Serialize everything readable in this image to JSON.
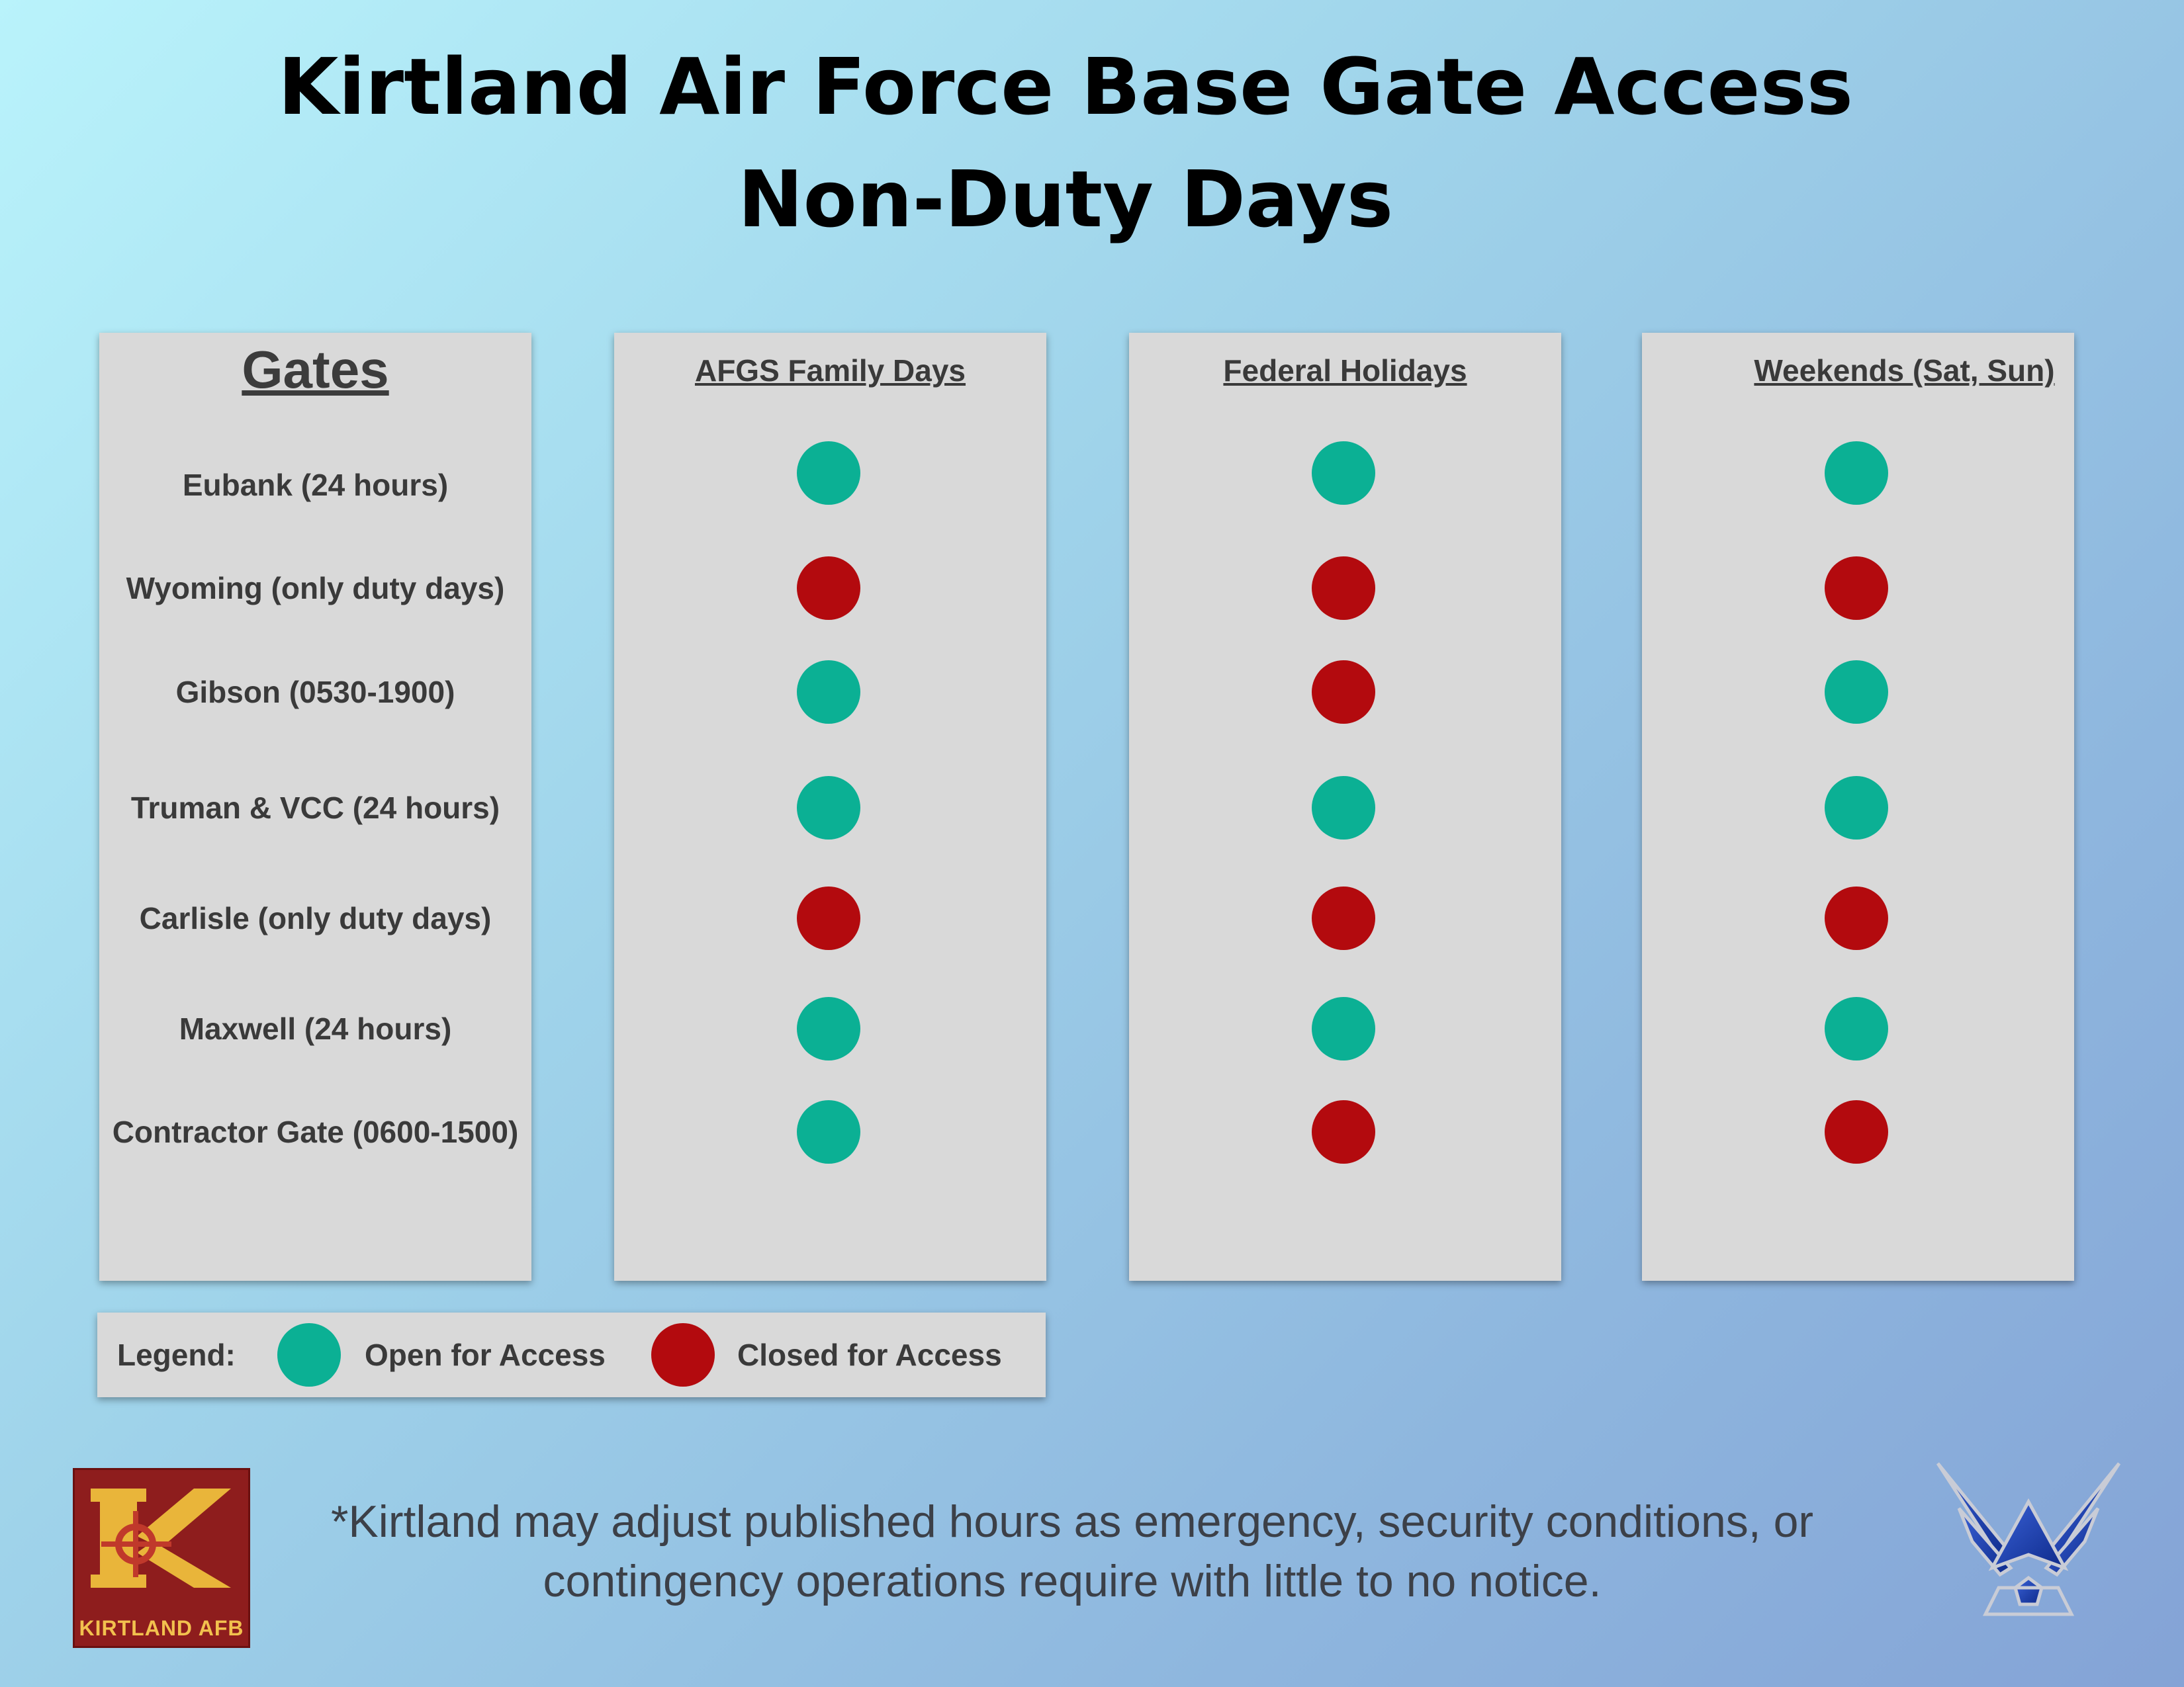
{
  "title_line1": "Kirtland Air Force Base Gate Access",
  "title_line2": "Non-Duty Days",
  "gates_heading": "Gates",
  "columns": [
    {
      "label": "AFGS Family Days",
      "status": [
        "open",
        "closed",
        "open",
        "open",
        "closed",
        "open",
        "open"
      ]
    },
    {
      "label": "Federal Holidays",
      "status": [
        "open",
        "closed",
        "closed",
        "open",
        "closed",
        "open",
        "closed"
      ]
    },
    {
      "label": "Weekends (Sat, Sun)",
      "status": [
        "open",
        "closed",
        "open",
        "open",
        "closed",
        "open",
        "closed"
      ]
    }
  ],
  "gates": [
    "Eubank (24 hours)",
    "Wyoming (only duty days)",
    "Gibson (0530-1900)",
    "Truman & VCC (24 hours)",
    "Carlisle (only duty days)",
    "Maxwell (24 hours)",
    "Contractor Gate (0600-1500)"
  ],
  "legend": {
    "label": "Legend:",
    "open_label": "Open for Access",
    "closed_label": "Closed for Access"
  },
  "colors": {
    "open": "#0bb094",
    "closed": "#b30a0e"
  },
  "footnote_line1": "*Kirtland may adjust published hours as emergency, security conditions, or",
  "footnote_line2": "contingency operations require with little to no notice.",
  "logo_text": "KIRTLAND AFB"
}
